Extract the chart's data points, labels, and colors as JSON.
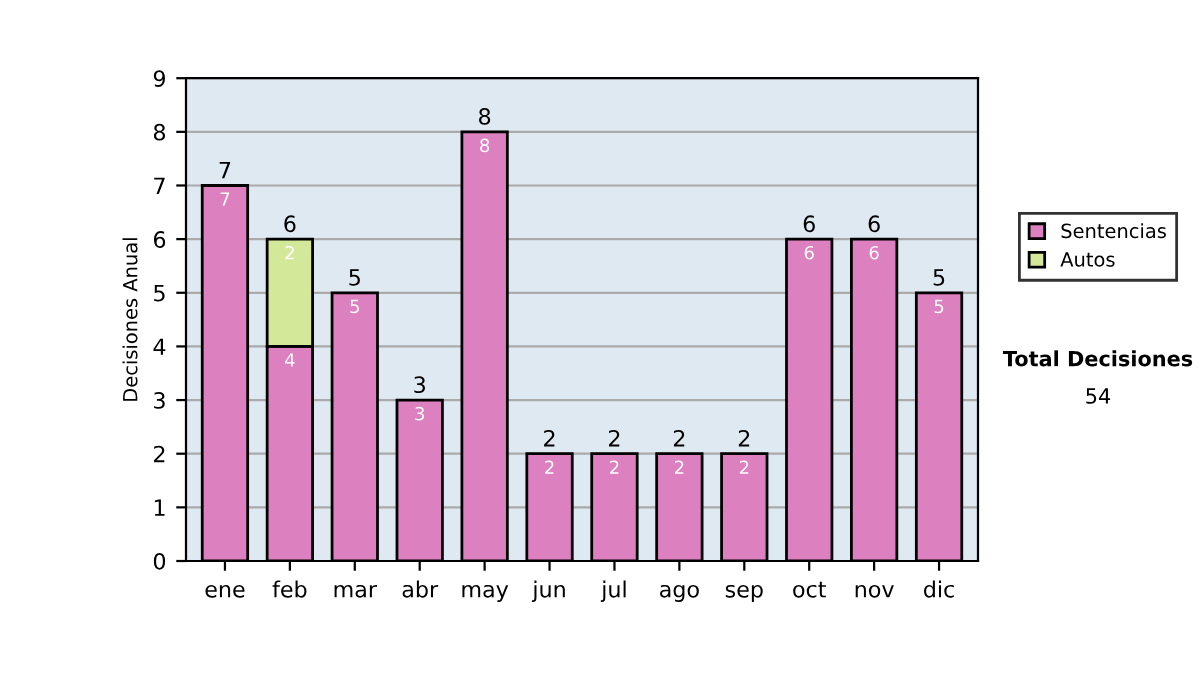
{
  "chart_data": {
    "type": "bar",
    "stacked": true,
    "ylabel": "Decisiones Anual",
    "categories": [
      "ene",
      "feb",
      "mar",
      "abr",
      "may",
      "jun",
      "jul",
      "ago",
      "sep",
      "oct",
      "nov",
      "dic"
    ],
    "series": [
      {
        "name": "Sentencias",
        "color": "#dd80c0",
        "values": [
          7,
          4,
          5,
          3,
          8,
          2,
          2,
          2,
          2,
          6,
          6,
          5
        ]
      },
      {
        "name": "Autos",
        "color": "#d4e899",
        "values": [
          null,
          2,
          null,
          null,
          null,
          null,
          null,
          null,
          null,
          null,
          null,
          null
        ]
      }
    ],
    "totals": [
      "7",
      "6",
      "5",
      "3",
      "8",
      "2",
      "2",
      "2",
      "2",
      "6",
      "6",
      "5"
    ],
    "data_labels": true,
    "ylim": [
      0,
      9
    ],
    "yticks": [
      0,
      1,
      2,
      3,
      4,
      5,
      6,
      7,
      8,
      9
    ],
    "grid": "y",
    "legend": "right",
    "annotations": [
      "Total Decisiones",
      "54"
    ]
  }
}
